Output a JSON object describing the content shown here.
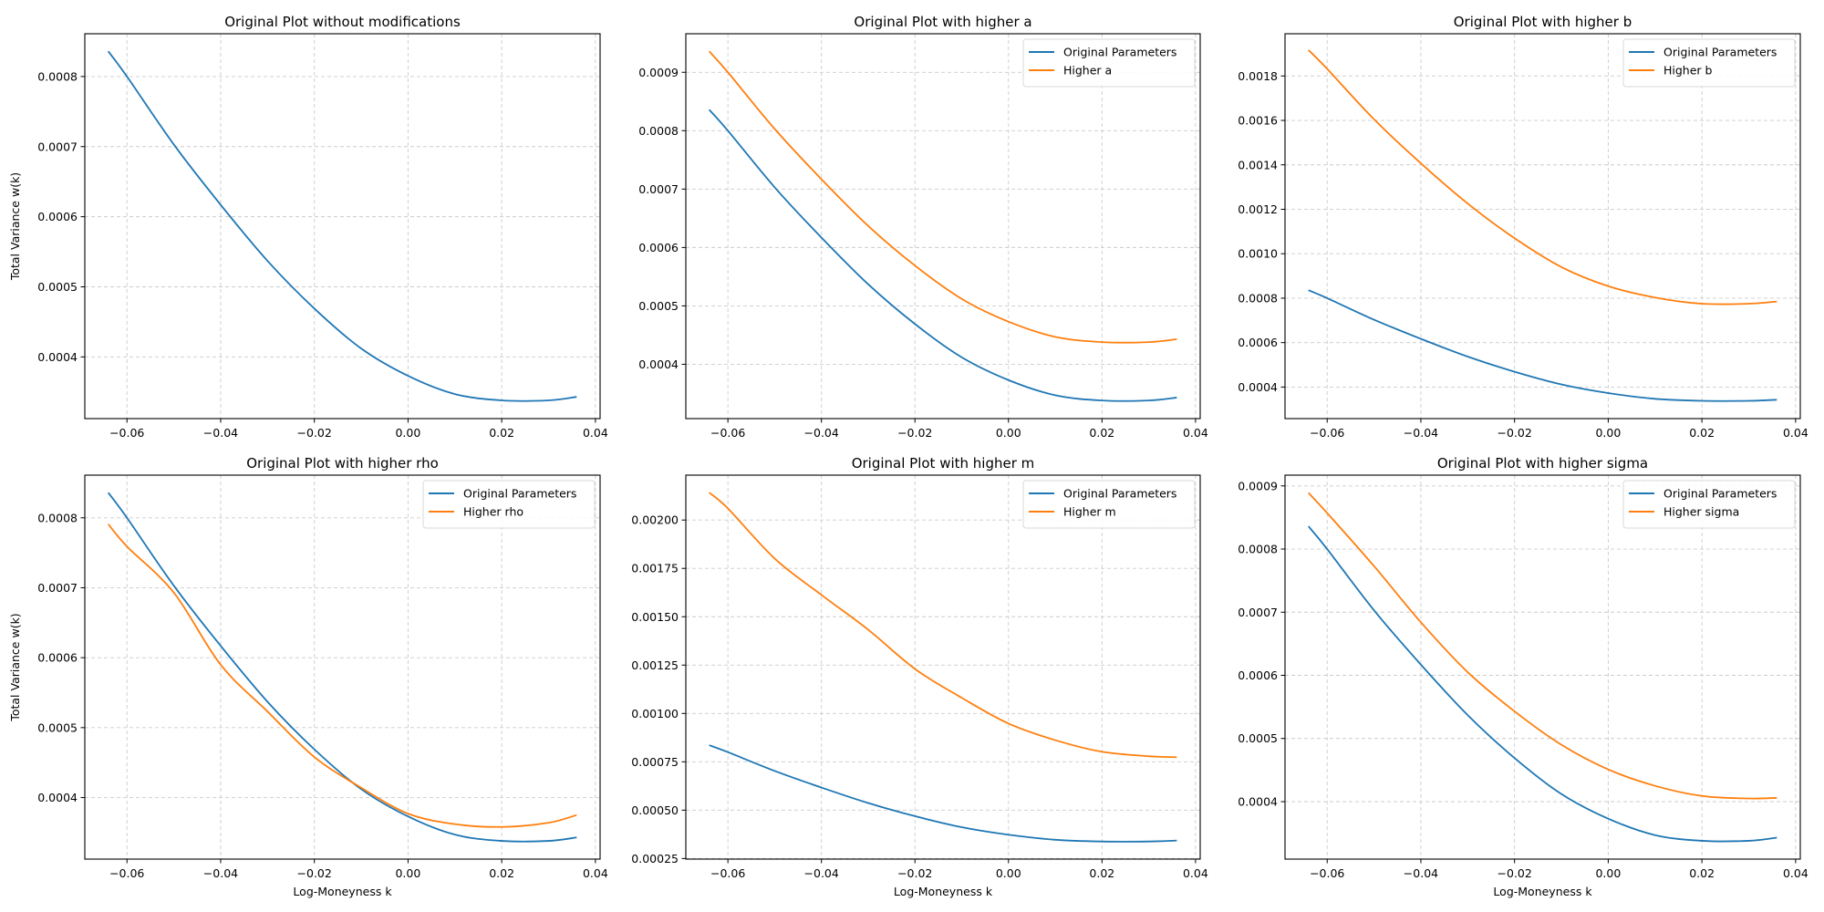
{
  "colors": {
    "original": "#1f77b4",
    "modified": "#ff7f0e",
    "grid": "#cccccc"
  },
  "chart_data": [
    {
      "type": "line",
      "title": "Original Plot without modifications",
      "xlabel": "",
      "ylabel": "Total Variance w(k)",
      "xlim": [
        -0.069,
        0.041
      ],
      "ylim": [
        0.000312,
        0.000861
      ],
      "grid": true,
      "legend": null,
      "xticks": {
        "values": [
          -0.06,
          -0.04,
          -0.02,
          0.0,
          0.02,
          0.04
        ],
        "labels": [
          "−0.06",
          "−0.04",
          "−0.02",
          "0.00",
          "0.02",
          "0.04"
        ]
      },
      "yticks": {
        "values": [
          0.0004,
          0.0005,
          0.0006,
          0.0007,
          0.0008
        ],
        "labels": [
          "0.0004",
          "0.0005",
          "0.0006",
          "0.0007",
          "0.0008"
        ]
      },
      "x": [
        -0.064,
        -0.06,
        -0.05,
        -0.04,
        -0.03,
        -0.02,
        -0.01,
        0.0,
        0.01,
        0.02,
        0.03,
        0.036
      ],
      "series": [
        {
          "color": "#1f77b4",
          "values": [
            0.000836,
            0.0008,
            0.000703,
            0.000617,
            0.000537,
            0.000469,
            0.000412,
            0.000373,
            0.000347,
            0.000338,
            0.000338,
            0.000343
          ]
        }
      ]
    },
    {
      "type": "line",
      "title": "Original Plot with higher a",
      "xlabel": "",
      "ylabel": "",
      "xlim": [
        -0.069,
        0.041
      ],
      "ylim": [
        0.000307,
        0.000966
      ],
      "grid": true,
      "legend": "top-right",
      "xticks": {
        "values": [
          -0.06,
          -0.04,
          -0.02,
          0.0,
          0.02,
          0.04
        ],
        "labels": [
          "−0.06",
          "−0.04",
          "−0.02",
          "0.00",
          "0.02",
          "0.04"
        ]
      },
      "yticks": {
        "values": [
          0.0004,
          0.0005,
          0.0006,
          0.0007,
          0.0008,
          0.0009
        ],
        "labels": [
          "0.0004",
          "0.0005",
          "0.0006",
          "0.0007",
          "0.0008",
          "0.0009"
        ]
      },
      "x": [
        -0.064,
        -0.06,
        -0.05,
        -0.04,
        -0.03,
        -0.02,
        -0.01,
        0.0,
        0.01,
        0.02,
        0.03,
        0.036
      ],
      "series": [
        {
          "name": "Original Parameters",
          "color": "#1f77b4",
          "values": [
            0.000836,
            0.0008,
            0.000703,
            0.000617,
            0.000537,
            0.000469,
            0.000412,
            0.000373,
            0.000347,
            0.000338,
            0.000338,
            0.000343
          ]
        },
        {
          "name": "Higher a",
          "color": "#ff7f0e",
          "values": [
            0.000936,
            0.0009,
            0.000803,
            0.000717,
            0.000637,
            0.000569,
            0.000512,
            0.000473,
            0.000447,
            0.000438,
            0.000438,
            0.000443
          ]
        }
      ]
    },
    {
      "type": "line",
      "title": "Original Plot with higher b",
      "xlabel": "",
      "ylabel": "",
      "xlim": [
        -0.069,
        0.041
      ],
      "ylim": [
        0.000258,
        0.00199
      ],
      "grid": true,
      "legend": "top-right",
      "xticks": {
        "values": [
          -0.06,
          -0.04,
          -0.02,
          0.0,
          0.02,
          0.04
        ],
        "labels": [
          "−0.06",
          "−0.04",
          "−0.02",
          "0.00",
          "0.02",
          "0.04"
        ]
      },
      "yticks": {
        "values": [
          0.0004,
          0.0006,
          0.0008,
          0.001,
          0.0012,
          0.0014,
          0.0016,
          0.0018
        ],
        "labels": [
          "0.0004",
          "0.0006",
          "0.0008",
          "0.0010",
          "0.0012",
          "0.0014",
          "0.0016",
          "0.0018"
        ]
      },
      "x": [
        -0.064,
        -0.06,
        -0.05,
        -0.04,
        -0.03,
        -0.02,
        -0.01,
        0.0,
        0.01,
        0.02,
        0.03,
        0.036
      ],
      "series": [
        {
          "name": "Original Parameters",
          "color": "#1f77b4",
          "values": [
            0.000836,
            0.0008,
            0.000703,
            0.000617,
            0.000537,
            0.000469,
            0.000412,
            0.000373,
            0.000347,
            0.000338,
            0.000338,
            0.000343
          ]
        },
        {
          "name": "Higher b",
          "color": "#ff7f0e",
          "values": [
            0.001917,
            0.001832,
            0.001605,
            0.001407,
            0.001226,
            0.00107,
            0.00094,
            0.000854,
            0.000803,
            0.000775,
            0.000775,
            0.000785
          ]
        }
      ]
    },
    {
      "type": "line",
      "title": "Original Plot with higher rho",
      "xlabel": "Log-Moneyness k",
      "ylabel": "Total Variance w(k)",
      "xlim": [
        -0.069,
        0.041
      ],
      "ylim": [
        0.000312,
        0.000861
      ],
      "grid": true,
      "legend": "top-right",
      "xticks": {
        "values": [
          -0.06,
          -0.04,
          -0.02,
          0.0,
          0.02,
          0.04
        ],
        "labels": [
          "−0.06",
          "−0.04",
          "−0.02",
          "0.00",
          "0.02",
          "0.04"
        ]
      },
      "yticks": {
        "values": [
          0.0004,
          0.0005,
          0.0006,
          0.0007,
          0.0008
        ],
        "labels": [
          "0.0004",
          "0.0005",
          "0.0006",
          "0.0007",
          "0.0008"
        ]
      },
      "x": [
        -0.064,
        -0.06,
        -0.05,
        -0.04,
        -0.03,
        -0.02,
        -0.01,
        0.0,
        0.01,
        0.02,
        0.03,
        0.036
      ],
      "series": [
        {
          "name": "Original Parameters",
          "color": "#1f77b4",
          "values": [
            0.000836,
            0.0008,
            0.000703,
            0.000617,
            0.000537,
            0.000469,
            0.000412,
            0.000373,
            0.000347,
            0.000338,
            0.000338,
            0.000343
          ]
        },
        {
          "name": "Higher rho",
          "color": "#ff7f0e",
          "values": [
            0.000791,
            0.000759,
            0.000693,
            0.00059,
            0.000523,
            0.000458,
            0.000414,
            0.000377,
            0.000362,
            0.000358,
            0.000364,
            0.000375
          ]
        }
      ]
    },
    {
      "type": "line",
      "title": "Original Plot with higher m",
      "xlabel": "Log-Moneyness k",
      "ylabel": "",
      "xlim": [
        -0.069,
        0.041
      ],
      "ylim": [
        0.000247,
        0.002232
      ],
      "grid": true,
      "legend": "top-right",
      "xticks": {
        "values": [
          -0.06,
          -0.04,
          -0.02,
          0.0,
          0.02,
          0.04
        ],
        "labels": [
          "−0.06",
          "−0.04",
          "−0.02",
          "0.00",
          "0.02",
          "0.04"
        ]
      },
      "yticks": {
        "values": [
          0.00025,
          0.0005,
          0.00075,
          0.001,
          0.00125,
          0.0015,
          0.00175,
          0.002
        ],
        "labels": [
          "0.00025",
          "0.00050",
          "0.00075",
          "0.00100",
          "0.00125",
          "0.00150",
          "0.00175",
          "0.00200"
        ]
      },
      "x": [
        -0.064,
        -0.06,
        -0.05,
        -0.04,
        -0.03,
        -0.02,
        -0.01,
        0.0,
        0.01,
        0.02,
        0.03,
        0.036
      ],
      "series": [
        {
          "name": "Original Parameters",
          "color": "#1f77b4",
          "values": [
            0.000836,
            0.0008,
            0.000703,
            0.000617,
            0.000537,
            0.000469,
            0.000412,
            0.000373,
            0.000347,
            0.000338,
            0.000338,
            0.000343
          ]
        },
        {
          "name": "Higher m",
          "color": "#ff7f0e",
          "values": [
            0.002142,
            0.00206,
            0.001801,
            0.001613,
            0.001433,
            0.00123,
            0.001081,
            0.000948,
            0.000862,
            0.000802,
            0.000779,
            0.000774
          ]
        }
      ]
    },
    {
      "type": "line",
      "title": "Original Plot with higher sigma",
      "xlabel": "Log-Moneyness k",
      "ylabel": "",
      "xlim": [
        -0.069,
        0.041
      ],
      "ylim": [
        0.000309,
        0.000917
      ],
      "grid": true,
      "legend": "top-right",
      "xticks": {
        "values": [
          -0.06,
          -0.04,
          -0.02,
          0.0,
          0.02,
          0.04
        ],
        "labels": [
          "−0.06",
          "−0.04",
          "−0.02",
          "0.00",
          "0.02",
          "0.04"
        ]
      },
      "yticks": {
        "values": [
          0.0004,
          0.0005,
          0.0006,
          0.0007,
          0.0008,
          0.0009
        ],
        "labels": [
          "0.0004",
          "0.0005",
          "0.0006",
          "0.0007",
          "0.0008",
          "0.0009"
        ]
      },
      "x": [
        -0.064,
        -0.06,
        -0.05,
        -0.04,
        -0.03,
        -0.02,
        -0.01,
        0.0,
        0.01,
        0.02,
        0.03,
        0.036
      ],
      "series": [
        {
          "name": "Original Parameters",
          "color": "#1f77b4",
          "values": [
            0.000836,
            0.0008,
            0.000703,
            0.000617,
            0.000537,
            0.000469,
            0.000412,
            0.000373,
            0.000347,
            0.000338,
            0.000338,
            0.000343
          ]
        },
        {
          "name": "Higher sigma",
          "color": "#ff7f0e",
          "values": [
            0.000889,
            0.000857,
            0.000773,
            0.000684,
            0.000605,
            0.000543,
            0.00049,
            0.000451,
            0.000425,
            0.000409,
            0.000405,
            0.000406
          ]
        }
      ]
    }
  ]
}
